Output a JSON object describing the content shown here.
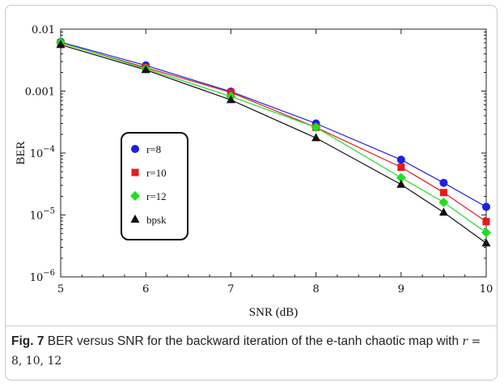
{
  "chart_data": {
    "type": "line",
    "ylog": true,
    "xlabel": "SNR (dB)",
    "ylabel": "BER",
    "xlim": [
      5,
      10
    ],
    "ylim": [
      1e-06,
      0.01
    ],
    "xticks": [
      "5",
      "6",
      "7",
      "8",
      "9",
      "10"
    ],
    "yticks": [
      {
        "value": 0.01,
        "base": "0.01",
        "exp": ""
      },
      {
        "value": 0.001,
        "base": "0.001",
        "exp": ""
      },
      {
        "value": 0.0001,
        "base": "10",
        "exp": "−4"
      },
      {
        "value": 1e-05,
        "base": "10",
        "exp": "−5"
      },
      {
        "value": 1e-06,
        "base": "10",
        "exp": "−6"
      }
    ],
    "legend_position": "left-center",
    "series": [
      {
        "name": "r=8",
        "color": "#1f1fe6",
        "marker": "circle",
        "x": [
          5,
          6,
          7,
          8,
          9,
          9.5,
          10
        ],
        "y": [
          0.0062,
          0.0026,
          0.00098,
          0.0003,
          7.8e-05,
          3.3e-05,
          1.35e-05
        ]
      },
      {
        "name": "r=10",
        "color": "#e61a1a",
        "marker": "square",
        "x": [
          5,
          6,
          7,
          8,
          9,
          9.5,
          10
        ],
        "y": [
          0.006,
          0.0024,
          0.00095,
          0.00026,
          5.9e-05,
          2.3e-05,
          7.8e-06
        ]
      },
      {
        "name": "r=12",
        "color": "#22dd22",
        "marker": "diamond",
        "x": [
          5,
          6,
          7,
          8,
          9,
          9.5,
          10
        ],
        "y": [
          0.0061,
          0.0023,
          0.00082,
          0.00026,
          4e-05,
          1.6e-05,
          5.2e-06
        ]
      },
      {
        "name": "bpsk",
        "color": "#111111",
        "marker": "triangle",
        "x": [
          5,
          6,
          7,
          8,
          9,
          9.5,
          10
        ],
        "y": [
          0.0056,
          0.0022,
          0.00072,
          0.000175,
          3.1e-05,
          1.1e-05,
          3.5e-06
        ]
      }
    ]
  },
  "caption": {
    "label": "Fig. 7",
    "text_before": " BER versus SNR for the backward iteration of the e-tanh chaotic map with ",
    "math_var": "r",
    "math_rest": " = 8, 10, 12"
  }
}
